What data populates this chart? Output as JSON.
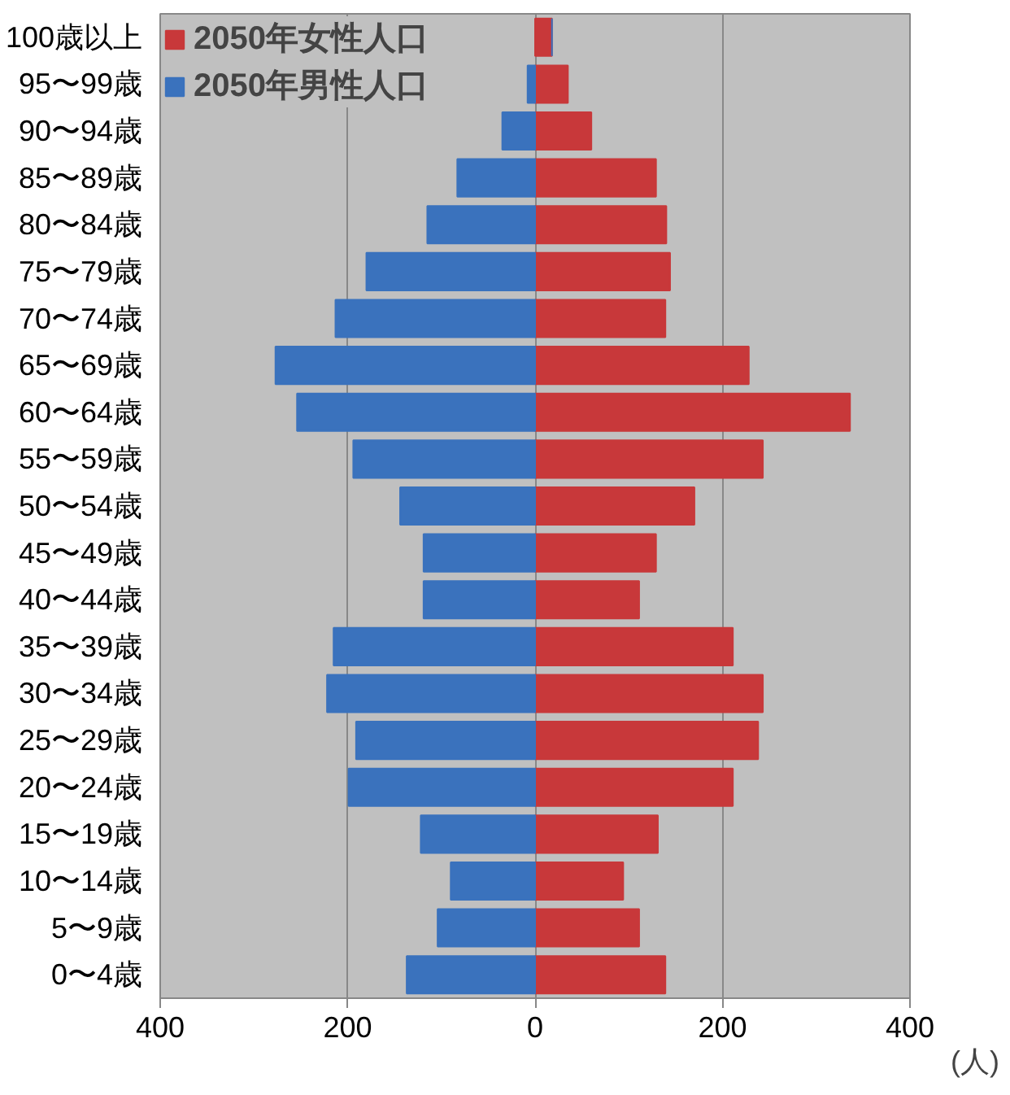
{
  "chart_data": {
    "type": "bar",
    "orientation": "horizontal",
    "stacked": true,
    "xlabel": "(人)",
    "categories": [
      "100歳以上",
      "95〜99歳",
      "90〜94歳",
      "85〜89歳",
      "80〜84歳",
      "75〜79歳",
      "70〜74歳",
      "65〜69歳",
      "60〜64歳",
      "55〜59歳",
      "50〜54歳",
      "45〜49歳",
      "40〜44歳",
      "35〜39歳",
      "30〜34歳",
      "25〜29歳",
      "20〜24歳",
      "15〜19歳",
      "10〜14歳",
      "5〜9歳",
      "0〜4歳"
    ],
    "series": [
      {
        "name": "2050年女性人口",
        "color": "#c8383a",
        "values": [
          18,
          35,
          60,
          129,
          140,
          144,
          139,
          228,
          336,
          243,
          170,
          129,
          111,
          211,
          243,
          238,
          211,
          131,
          94,
          111,
          139
        ]
      },
      {
        "name": "2050年男性人口",
        "color": "#3a72bd",
        "values": [
          0,
          -8,
          -35,
          -83,
          -115,
          -180,
          -213,
          -277,
          -254,
          -194,
          -144,
          -119,
          -119,
          -215,
          -222,
          -191,
          -199,
          -122,
          -90,
          -104,
          -137
        ]
      }
    ],
    "xlim": [
      -400,
      400
    ],
    "xticks": [
      {
        "value": -400,
        "label": "400"
      },
      {
        "value": -200,
        "label": "200"
      },
      0,
      200,
      400
    ],
    "grid": "x",
    "legend": "top left"
  }
}
